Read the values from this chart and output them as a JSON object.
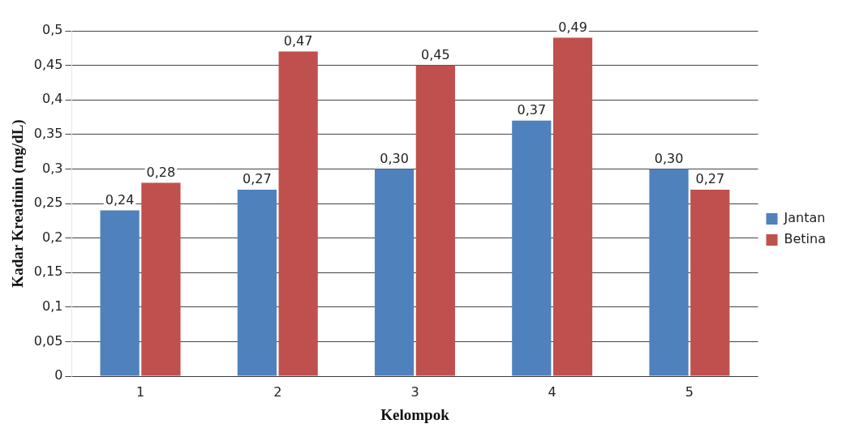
{
  "chart_data": {
    "type": "bar",
    "xlabel": "Kelompok",
    "ylabel": "Kadar Kreatinin (mg/dL)",
    "categories": [
      "1",
      "2",
      "3",
      "4",
      "5"
    ],
    "series": [
      {
        "name": "Jantan",
        "color": "#4f81bd",
        "values": [
          0.24,
          0.27,
          0.3,
          0.37,
          0.3
        ],
        "value_labels": [
          "0,24",
          "0,27",
          "0,30",
          "0,37",
          "0,30"
        ]
      },
      {
        "name": "Betina",
        "color": "#c0504d",
        "values": [
          0.28,
          0.47,
          0.45,
          0.49,
          0.27
        ],
        "value_labels": [
          "0,28",
          "0,47",
          "0,45",
          "0,49",
          "0,27"
        ]
      }
    ],
    "ylim": [
      0,
      0.5
    ],
    "yticks": [
      0,
      {
        "value": 0.05,
        "label": "0,05"
      },
      {
        "value": 0.1,
        "label": "0,1"
      },
      {
        "value": 0.15,
        "label": "0,15"
      },
      {
        "value": 0.2,
        "label": "0,2"
      },
      {
        "value": 0.25,
        "label": "0,25"
      },
      {
        "value": 0.3,
        "label": "0,3"
      },
      {
        "value": 0.35,
        "label": "0,35"
      },
      {
        "value": 0.4,
        "label": "0,4"
      },
      {
        "value": 0.45,
        "label": "0,45"
      },
      {
        "value": 0.5,
        "label": "0,5"
      }
    ],
    "grid": "y",
    "legend": "right"
  }
}
